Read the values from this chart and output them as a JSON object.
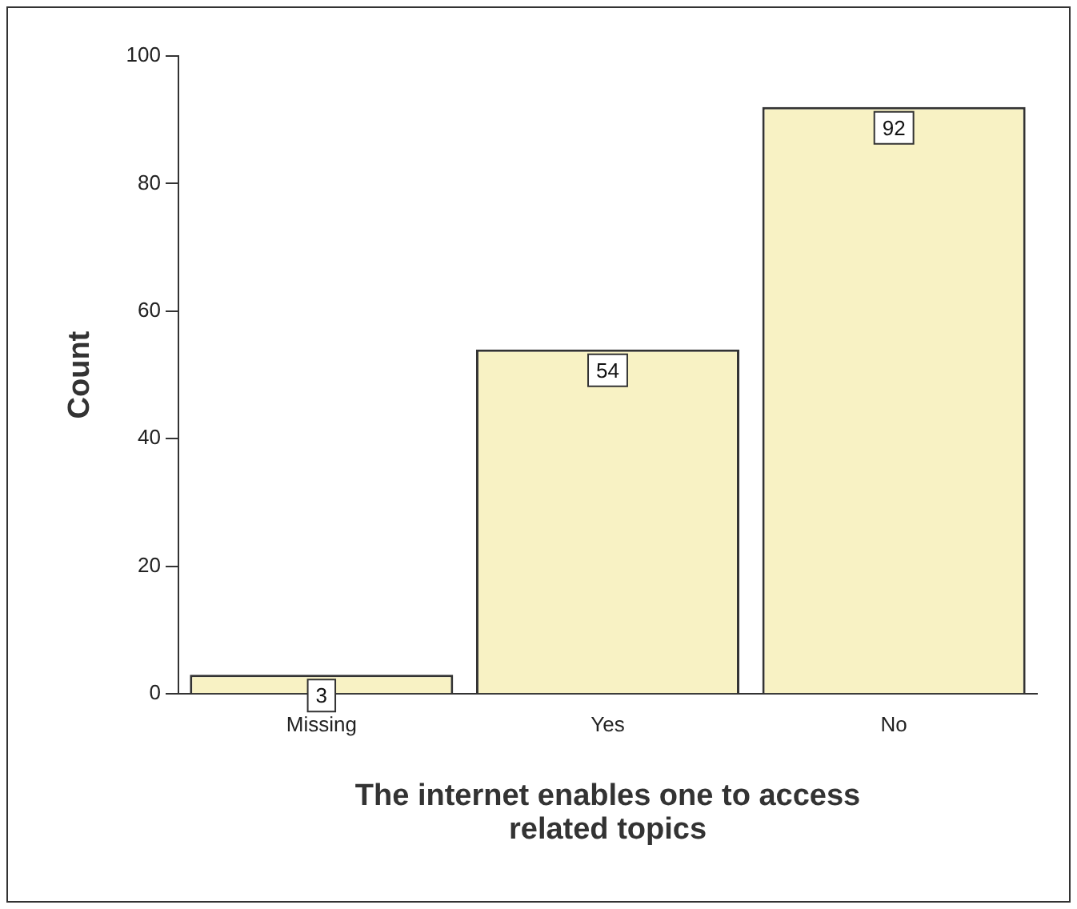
{
  "chart_data": {
    "type": "bar",
    "xlabel": "The internet enables one to access\nrelated topics",
    "ylabel": "Count",
    "categories": [
      "Missing",
      "Yes",
      "No"
    ],
    "values": [
      3,
      54,
      92
    ],
    "color": "#f8f2c4",
    "ylim": [
      0,
      100
    ],
    "yticks": [
      0,
      20,
      40,
      60,
      80,
      100
    ],
    "grid": false,
    "data_labels": true
  }
}
